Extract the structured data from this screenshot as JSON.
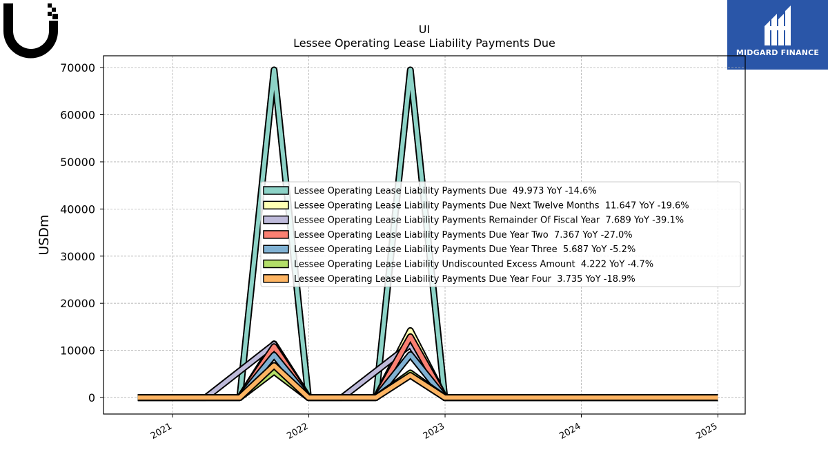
{
  "header": {
    "ticker": "UI",
    "title": "Lessee Operating Lease Liability Payments Due"
  },
  "brand": {
    "name": "MIDGARD FINANCE",
    "box_color": "#2a56a8"
  },
  "chart_data": {
    "type": "area",
    "title": "Lessee Operating Lease Liability Payments Due",
    "xlabel": "",
    "ylabel": "USDm",
    "ylim": [
      -3500,
      72500
    ],
    "yticks": [
      0,
      10000,
      20000,
      30000,
      40000,
      50000,
      60000,
      70000
    ],
    "xlim": [
      "2020-06-30",
      "2025-03-15"
    ],
    "xticks": [
      {
        "date": "2021-01-01",
        "label": "2021"
      },
      {
        "date": "2022-01-01",
        "label": "2022"
      },
      {
        "date": "2023-01-01",
        "label": "2023"
      },
      {
        "date": "2024-01-01",
        "label": "2024"
      },
      {
        "date": "2025-01-01",
        "label": "2025"
      }
    ],
    "grid": true,
    "legend_position": "center-right",
    "series": [
      {
        "name": "Lessee Operating Lease Liability Payments Due",
        "legend": "Lessee Operating Lease Liability Payments Due  49.973 YoY -14.6%",
        "color": "#8dd3c7",
        "points": [
          [
            "2020-09-30",
            0
          ],
          [
            "2021-06-30",
            0
          ],
          [
            "2021-09-30",
            69500
          ],
          [
            "2021-12-31",
            0
          ],
          [
            "2022-06-30",
            0
          ],
          [
            "2022-09-30",
            69500
          ],
          [
            "2022-12-31",
            0
          ],
          [
            "2025-01-01",
            0
          ]
        ]
      },
      {
        "name": "Lessee Operating Lease Liability Payments Due Next Twelve Months",
        "legend": "Lessee Operating Lease Liability Payments Due Next Twelve Months  11.647 YoY -19.6%",
        "color": "#ffffb3",
        "points": [
          [
            "2020-09-30",
            0
          ],
          [
            "2021-06-30",
            0
          ],
          [
            "2021-09-30",
            11400
          ],
          [
            "2021-12-31",
            0
          ],
          [
            "2022-06-30",
            0
          ],
          [
            "2022-09-30",
            14200
          ],
          [
            "2022-12-31",
            0
          ],
          [
            "2025-01-01",
            0
          ]
        ]
      },
      {
        "name": "Lessee Operating Lease Liability Payments Remainder Of Fiscal Year",
        "legend": "Lessee Operating Lease Liability Payments Remainder Of Fiscal Year  7.689 YoY -39.1%",
        "color": "#bebada",
        "points": [
          [
            "2020-09-30",
            0
          ],
          [
            "2021-03-31",
            0
          ],
          [
            "2021-09-30",
            11300
          ],
          [
            "2021-12-31",
            0
          ],
          [
            "2022-03-31",
            0
          ],
          [
            "2022-09-30",
            11200
          ],
          [
            "2022-12-31",
            0
          ],
          [
            "2025-01-01",
            0
          ]
        ]
      },
      {
        "name": "Lessee Operating Lease Liability Payments Due Year Two",
        "legend": "Lessee Operating Lease Liability Payments Due Year Two  7.367 YoY -27.0%",
        "color": "#fb8072",
        "points": [
          [
            "2020-09-30",
            0
          ],
          [
            "2021-06-30",
            0
          ],
          [
            "2021-09-30",
            10800
          ],
          [
            "2021-12-31",
            0
          ],
          [
            "2022-06-30",
            0
          ],
          [
            "2022-09-30",
            12900
          ],
          [
            "2022-12-31",
            0
          ],
          [
            "2025-01-01",
            0
          ]
        ]
      },
      {
        "name": "Lessee Operating Lease Liability Payments Due Year Three",
        "legend": "Lessee Operating Lease Liability Payments Due Year Three  5.687 YoY -5.2%",
        "color": "#80b1d3",
        "points": [
          [
            "2020-09-30",
            0
          ],
          [
            "2021-06-30",
            0
          ],
          [
            "2021-09-30",
            9000
          ],
          [
            "2021-12-31",
            0
          ],
          [
            "2022-06-30",
            0
          ],
          [
            "2022-09-30",
            9100
          ],
          [
            "2022-12-31",
            0
          ],
          [
            "2025-01-01",
            0
          ]
        ]
      },
      {
        "name": "Lessee Operating Lease Liability Undiscounted Excess Amount",
        "legend": "Lessee Operating Lease Liability Undiscounted Excess Amount  4.222 YoY -4.7%",
        "color": "#b3de69",
        "points": [
          [
            "2020-09-30",
            0
          ],
          [
            "2021-06-30",
            0
          ],
          [
            "2021-09-30",
            5500
          ],
          [
            "2021-12-31",
            0
          ],
          [
            "2022-06-30",
            0
          ],
          [
            "2022-09-30",
            5200
          ],
          [
            "2022-12-31",
            0
          ],
          [
            "2025-01-01",
            0
          ]
        ]
      },
      {
        "name": "Lessee Operating Lease Liability Payments Due Year Four",
        "legend": "Lessee Operating Lease Liability Payments Due Year Four  3.735 YoY -18.9%",
        "color": "#fdb462",
        "points": [
          [
            "2020-09-30",
            0
          ],
          [
            "2021-06-30",
            0
          ],
          [
            "2021-09-30",
            6800
          ],
          [
            "2021-12-31",
            0
          ],
          [
            "2022-06-30",
            0
          ],
          [
            "2022-09-30",
            4700
          ],
          [
            "2022-12-31",
            0
          ],
          [
            "2025-01-01",
            0
          ]
        ]
      }
    ]
  }
}
